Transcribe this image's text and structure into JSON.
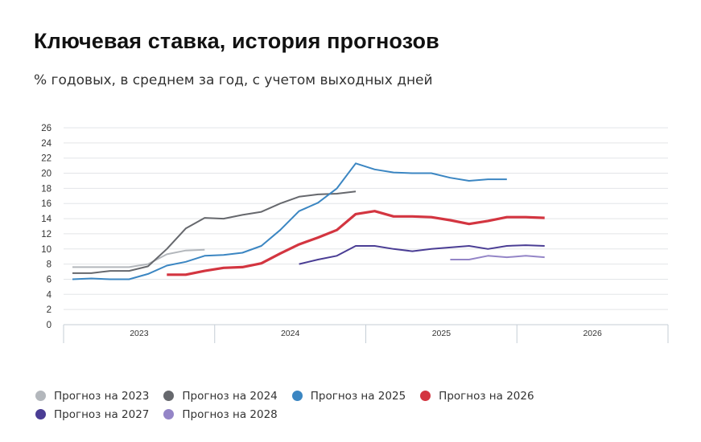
{
  "chart_data": {
    "type": "line",
    "title": "Ключевая ставка, история прогнозов",
    "subtitle": "% годовых, в среднем за год, с учетом выходных дней",
    "xlabel": "",
    "ylabel": "",
    "ylim": [
      0,
      26
    ],
    "yticks": [
      0,
      2,
      4,
      6,
      8,
      10,
      12,
      14,
      16,
      18,
      20,
      22,
      24,
      26
    ],
    "ytick_labels": [
      "0",
      "2",
      "4",
      "6",
      "8",
      "10",
      "12",
      "14",
      "16",
      "18",
      "20",
      "22",
      "24",
      "26"
    ],
    "x_categories": [
      "2023",
      "2024",
      "2025",
      "2026"
    ],
    "points_per_year": 8,
    "grid": true,
    "legend_position": "bottom",
    "series": [
      {
        "name": "Прогноз на 2023",
        "color": "#b3b7bc",
        "start_index": 0,
        "values": [
          7.6,
          7.6,
          7.6,
          7.6,
          8.0,
          9.3,
          9.8,
          9.9
        ]
      },
      {
        "name": "Прогноз на 2024",
        "color": "#66686d",
        "start_index": 0,
        "values": [
          6.8,
          6.8,
          7.1,
          7.1,
          7.7,
          10.0,
          12.7,
          14.1,
          14.0,
          14.5,
          14.9,
          16.0,
          16.9,
          17.2,
          17.3,
          17.6
        ]
      },
      {
        "name": "Прогноз на 2025",
        "color": "#3b86c2",
        "start_index": 0,
        "values": [
          6.0,
          6.1,
          6.0,
          6.0,
          6.7,
          7.8,
          8.3,
          9.1,
          9.2,
          9.5,
          10.4,
          12.5,
          15.0,
          16.1,
          18.0,
          21.3,
          20.5,
          20.1,
          20.0,
          20.0,
          19.4,
          19.0,
          19.2,
          19.2
        ]
      },
      {
        "name": "Прогноз на 2026",
        "color": "#d33540",
        "start_index": 5,
        "values": [
          6.6,
          6.6,
          7.1,
          7.5,
          7.6,
          8.1,
          9.4,
          10.6,
          11.5,
          12.5,
          14.6,
          15.0,
          14.3,
          14.3,
          14.2,
          13.8,
          13.3,
          13.7,
          14.2,
          14.2,
          14.1
        ]
      },
      {
        "name": "Прогноз на 2027",
        "color": "#4a3d94",
        "start_index": 12,
        "values": [
          8.0,
          8.6,
          9.1,
          10.4,
          10.4,
          10.0,
          9.7,
          10.0,
          10.2,
          10.4,
          10.0,
          10.4,
          10.5,
          10.4
        ]
      },
      {
        "name": "Прогноз на 2028",
        "color": "#9485c7",
        "start_index": 20,
        "values": [
          8.6,
          8.6,
          9.1,
          8.9,
          9.1,
          8.9
        ]
      }
    ]
  },
  "legend": {
    "rows": [
      [
        0,
        1,
        2,
        3
      ],
      [
        4,
        5
      ]
    ]
  }
}
